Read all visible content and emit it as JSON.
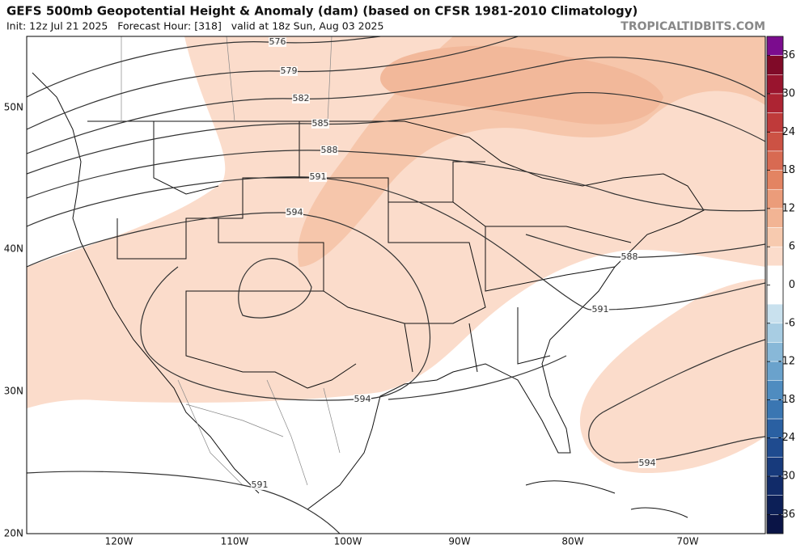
{
  "header": {
    "title": "GEFS 500mb Geopotential Height & Anomaly (dam) (based on CFSR 1981-2010 Climatology)",
    "subtitle": "Init: 12z Jul 21 2025   Forecast Hour: [318]   valid at 18z Sun, Aug 03 2025",
    "site": "TROPICALTIDBITS.COM"
  },
  "map": {
    "lat_labels": [
      "50N",
      "40N",
      "30N",
      "20N"
    ],
    "lon_labels": [
      "120W",
      "110W",
      "100W",
      "90W",
      "80W",
      "70W"
    ],
    "contour_labels": [
      "576",
      "579",
      "582",
      "585",
      "588",
      "591",
      "594",
      "588",
      "591",
      "594",
      "591",
      "594"
    ]
  },
  "colorbar": {
    "lim": [
      -39,
      39
    ],
    "ticks": [
      36,
      30,
      24,
      18,
      12,
      6,
      0,
      -6,
      -12,
      -18,
      -24,
      -30,
      -36
    ],
    "colors": [
      "#7b0c8e",
      "#800a28",
      "#99142e",
      "#ad2433",
      "#bf3a3a",
      "#cc5244",
      "#d86a52",
      "#e38462",
      "#eb9c7a",
      "#f2b494",
      "#f7caaf",
      "#fbdccb",
      "#ffffff",
      "#ffffff",
      "#c9e1ee",
      "#a8cde3",
      "#88b8d8",
      "#6aa2cc",
      "#4f8cc0",
      "#3a76b2",
      "#2a60a2",
      "#1f4b8f",
      "#173a7c",
      "#112b69",
      "#0c1f57",
      "#0a1446"
    ]
  }
}
